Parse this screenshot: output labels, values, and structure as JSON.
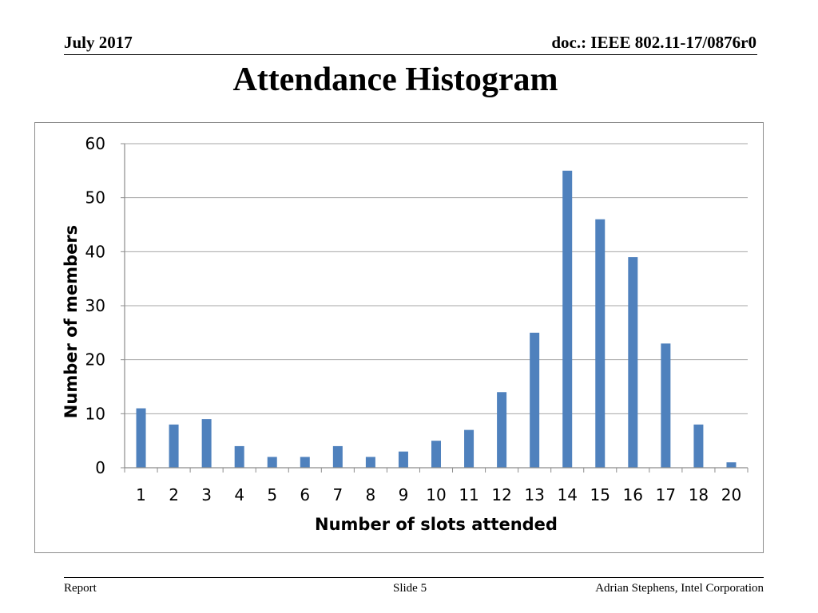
{
  "header": {
    "date": "July 2017",
    "doc_id": "doc.: IEEE 802.11-17/0876r0"
  },
  "slide_title": "Attendance Histogram",
  "footer": {
    "left": "Report",
    "center": "Slide 5",
    "right": "Adrian Stephens, Intel Corporation"
  },
  "colors": {
    "bar": "#4f81bd",
    "grid": "#a6a6a6",
    "axis": "#8c8c8c"
  },
  "chart_data": {
    "type": "bar",
    "categories": [
      "1",
      "2",
      "3",
      "4",
      "5",
      "6",
      "7",
      "8",
      "9",
      "10",
      "11",
      "12",
      "13",
      "14",
      "15",
      "16",
      "17",
      "18",
      "20"
    ],
    "values": [
      11,
      8,
      9,
      4,
      2,
      2,
      4,
      2,
      3,
      5,
      7,
      14,
      25,
      55,
      46,
      39,
      23,
      8,
      1
    ],
    "xlabel": "Number of slots attended",
    "ylabel": "Number of members",
    "ylim": [
      0,
      60
    ],
    "yticks": [
      0,
      10,
      20,
      30,
      40,
      50,
      60
    ],
    "grid": true,
    "legend": "none"
  }
}
